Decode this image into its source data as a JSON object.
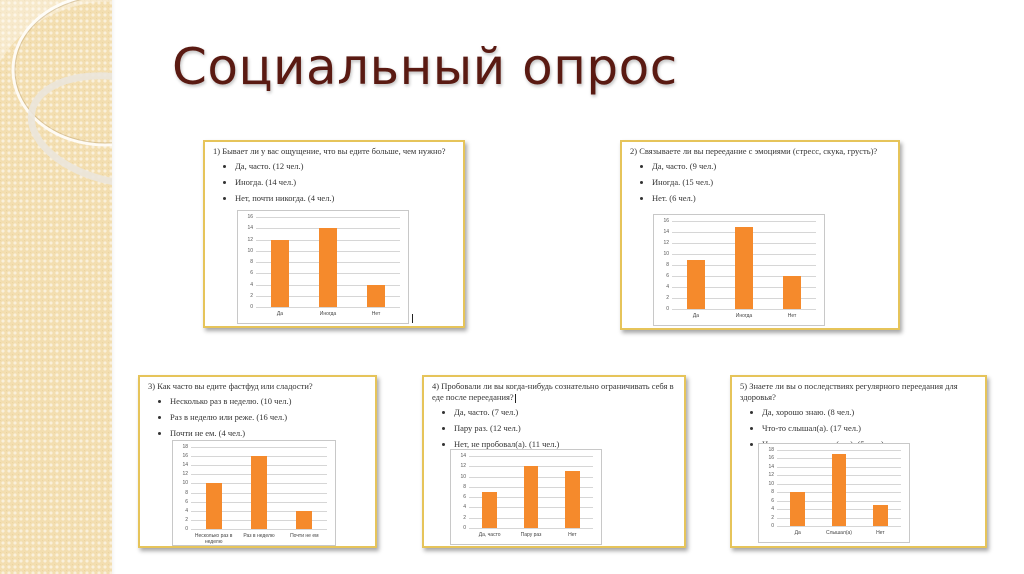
{
  "slide": {
    "title": "Социальный опрос",
    "accent_color": "#5a1a12",
    "bar_color": "#f58a2c",
    "card_border_color": "#e6c45a"
  },
  "cards": [
    {
      "question": "1) Бывает ли у вас ощущение, что вы едите больше, чем нужно?",
      "answers": [
        "Да, часто. (12 чел.)",
        "Иногда. (14 чел.)",
        "Нет, почти никогда. (4 чел.)"
      ]
    },
    {
      "question": "2) Связываете ли вы переедание с эмоциями (стресс, скука, грусть)?",
      "answers": [
        "Да, часто. (9 чел.)",
        "Иногда. (15 чел.)",
        "Нет. (6 чел.)"
      ]
    },
    {
      "question": "3) Как часто вы едите фастфуд или сладости?",
      "answers": [
        "Несколько раз в неделю. (10 чел.)",
        "Раз в неделю или реже. (16 чел.)",
        "Почти не ем. (4 чел.)"
      ]
    },
    {
      "question": "4) Пробовали ли вы когда-нибудь сознательно ограничивать себя в еде после переедания?",
      "answers": [
        "Да, часто. (7 чел.)",
        "Пару раз. (12 чел.)",
        "Нет, не пробовал(а). (11 чел.)"
      ]
    },
    {
      "question": "5) Знаете ли вы о последствиях регулярного переедания для здоровья?",
      "answers": [
        "Да, хорошо знаю. (8 чел.)",
        "Что-то слышал(а). (17 чел.)",
        "Нет, не задумывался(ась). (5 чел.)"
      ]
    }
  ],
  "chart_data": [
    {
      "type": "bar",
      "title": "1) Бывает ли у вас ощущение, что вы едите больше, чем нужно?",
      "categories": [
        "Да",
        "Иногда",
        "Нет"
      ],
      "values": [
        12,
        14,
        4
      ],
      "yticks": [
        "0",
        "2",
        "4",
        "6",
        "8",
        "10",
        "12",
        "14",
        "16"
      ],
      "ylim": [
        0,
        16
      ],
      "grid": true,
      "legend": "none",
      "xlabel": "",
      "ylabel": ""
    },
    {
      "type": "bar",
      "title": "2) Связываете ли вы переедание с эмоциями (стресс, скука, грусть)?",
      "categories": [
        "Да",
        "Иногда",
        "Нет"
      ],
      "values": [
        9,
        15,
        6
      ],
      "yticks": [
        "0",
        "2",
        "4",
        "6",
        "8",
        "10",
        "12",
        "14",
        "16"
      ],
      "ylim": [
        0,
        16
      ],
      "grid": true,
      "legend": "none",
      "xlabel": "",
      "ylabel": ""
    },
    {
      "type": "bar",
      "title": "3) Как часто вы едите фастфуд или сладости?",
      "categories": [
        "Несколько раз в неделю",
        "Раз в неделю",
        "Почти не ем"
      ],
      "values": [
        10,
        16,
        4
      ],
      "yticks": [
        "0",
        "2",
        "4",
        "6",
        "8",
        "10",
        "12",
        "14",
        "16",
        "18"
      ],
      "ylim": [
        0,
        18
      ],
      "grid": true,
      "legend": "none",
      "xlabel": "",
      "ylabel": ""
    },
    {
      "type": "bar",
      "title": "4) Пробовали ли вы когда-нибудь сознательно ограничивать себя в еде после переедания?",
      "categories": [
        "Да, часто",
        "Пару раз",
        "Нет"
      ],
      "values": [
        7,
        12,
        11
      ],
      "yticks": [
        "0",
        "2",
        "4",
        "6",
        "8",
        "10",
        "12",
        "14"
      ],
      "ylim": [
        0,
        14
      ],
      "grid": true,
      "legend": "none",
      "xlabel": "",
      "ylabel": ""
    },
    {
      "type": "bar",
      "title": "5) Знаете ли вы о последствиях регулярного переедания для здоровья?",
      "categories": [
        "Да",
        "Слышал(а)",
        "Нет"
      ],
      "values": [
        8,
        17,
        5
      ],
      "yticks": [
        "0",
        "2",
        "4",
        "6",
        "8",
        "10",
        "12",
        "14",
        "16",
        "18"
      ],
      "ylim": [
        0,
        18
      ],
      "grid": true,
      "legend": "none",
      "xlabel": "",
      "ylabel": ""
    }
  ]
}
